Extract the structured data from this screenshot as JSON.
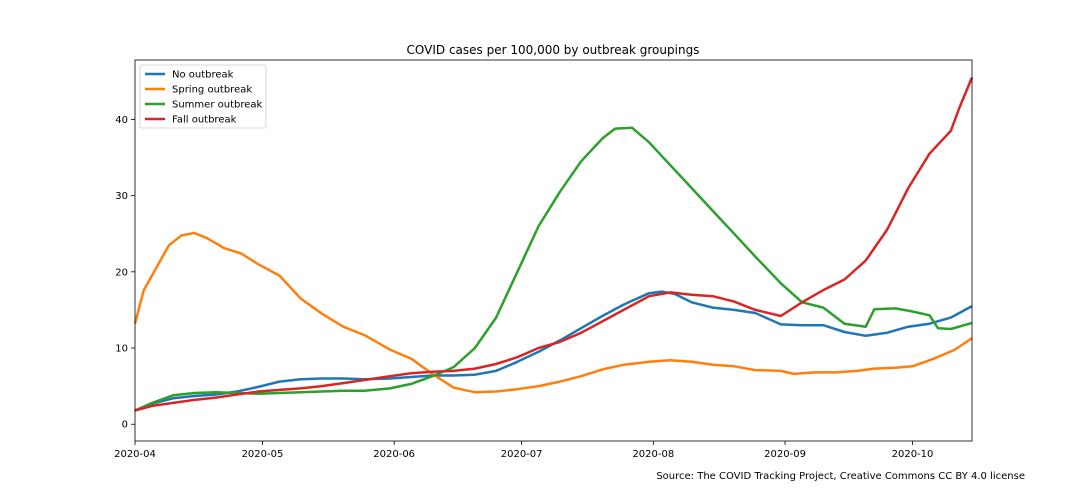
{
  "chart_data": {
    "type": "line",
    "title": "COVID cases per 100,000 by outbreak groupings",
    "xlabel": "",
    "ylabel": "",
    "x_ticks": [
      "2020-04",
      "2020-05",
      "2020-06",
      "2020-07",
      "2020-08",
      "2020-09",
      "2020-10"
    ],
    "y_ticks": [
      0,
      10,
      20,
      30,
      40
    ],
    "xlim": [
      "2020-04-01",
      "2020-10-15"
    ],
    "ylim": [
      -2.2,
      47.8
    ],
    "grid": false,
    "legend_position": "upper-left",
    "source_note": "Source: The COVID Tracking Project, Creative Commons CC BY 4.0 license",
    "series": [
      {
        "name": "No outbreak",
        "color": "#1f77b4",
        "points": [
          [
            "2020-04-01",
            1.8
          ],
          [
            "2020-04-05",
            2.7
          ],
          [
            "2020-04-10",
            3.4
          ],
          [
            "2020-04-15",
            3.7
          ],
          [
            "2020-04-20",
            3.9
          ],
          [
            "2020-04-25",
            4.3
          ],
          [
            "2020-04-30",
            4.9
          ],
          [
            "2020-05-05",
            5.6
          ],
          [
            "2020-05-10",
            5.9
          ],
          [
            "2020-05-15",
            6.0
          ],
          [
            "2020-05-20",
            6.0
          ],
          [
            "2020-05-25",
            5.9
          ],
          [
            "2020-05-31",
            6.0
          ],
          [
            "2020-06-05",
            6.2
          ],
          [
            "2020-06-10",
            6.4
          ],
          [
            "2020-06-15",
            6.4
          ],
          [
            "2020-06-20",
            6.5
          ],
          [
            "2020-06-25",
            7.0
          ],
          [
            "2020-06-30",
            8.2
          ],
          [
            "2020-07-05",
            9.5
          ],
          [
            "2020-07-10",
            11.0
          ],
          [
            "2020-07-15",
            12.6
          ],
          [
            "2020-07-20",
            14.2
          ],
          [
            "2020-07-25",
            15.7
          ],
          [
            "2020-07-31",
            17.2
          ],
          [
            "2020-08-03",
            17.4
          ],
          [
            "2020-08-06",
            17.1
          ],
          [
            "2020-08-10",
            16.0
          ],
          [
            "2020-08-15",
            15.3
          ],
          [
            "2020-08-20",
            15.0
          ],
          [
            "2020-08-25",
            14.6
          ],
          [
            "2020-08-31",
            13.1
          ],
          [
            "2020-09-05",
            13.0
          ],
          [
            "2020-09-10",
            13.0
          ],
          [
            "2020-09-15",
            12.1
          ],
          [
            "2020-09-20",
            11.6
          ],
          [
            "2020-09-25",
            12.0
          ],
          [
            "2020-09-30",
            12.8
          ],
          [
            "2020-10-05",
            13.2
          ],
          [
            "2020-10-10",
            14.0
          ],
          [
            "2020-10-15",
            15.5
          ]
        ]
      },
      {
        "name": "Spring outbreak",
        "color": "#ff7f0e",
        "points": [
          [
            "2020-04-01",
            13.2
          ],
          [
            "2020-04-03",
            17.5
          ],
          [
            "2020-04-06",
            20.5
          ],
          [
            "2020-04-09",
            23.5
          ],
          [
            "2020-04-12",
            24.8
          ],
          [
            "2020-04-15",
            25.1
          ],
          [
            "2020-04-18",
            24.4
          ],
          [
            "2020-04-22",
            23.1
          ],
          [
            "2020-04-26",
            22.4
          ],
          [
            "2020-04-30",
            21.0
          ],
          [
            "2020-05-05",
            19.5
          ],
          [
            "2020-05-10",
            16.5
          ],
          [
            "2020-05-15",
            14.5
          ],
          [
            "2020-05-20",
            12.8
          ],
          [
            "2020-05-25",
            11.7
          ],
          [
            "2020-05-31",
            9.8
          ],
          [
            "2020-06-05",
            8.6
          ],
          [
            "2020-06-10",
            6.6
          ],
          [
            "2020-06-15",
            4.8
          ],
          [
            "2020-06-20",
            4.2
          ],
          [
            "2020-06-25",
            4.3
          ],
          [
            "2020-06-30",
            4.6
          ],
          [
            "2020-07-05",
            5.0
          ],
          [
            "2020-07-10",
            5.6
          ],
          [
            "2020-07-15",
            6.3
          ],
          [
            "2020-07-20",
            7.2
          ],
          [
            "2020-07-25",
            7.8
          ],
          [
            "2020-07-31",
            8.2
          ],
          [
            "2020-08-05",
            8.4
          ],
          [
            "2020-08-10",
            8.2
          ],
          [
            "2020-08-15",
            7.8
          ],
          [
            "2020-08-20",
            7.6
          ],
          [
            "2020-08-25",
            7.1
          ],
          [
            "2020-08-31",
            7.0
          ],
          [
            "2020-09-03",
            6.6
          ],
          [
            "2020-09-08",
            6.8
          ],
          [
            "2020-09-13",
            6.8
          ],
          [
            "2020-09-18",
            7.0
          ],
          [
            "2020-09-22",
            7.3
          ],
          [
            "2020-09-27",
            7.4
          ],
          [
            "2020-10-01",
            7.6
          ],
          [
            "2020-10-06",
            8.6
          ],
          [
            "2020-10-11",
            9.8
          ],
          [
            "2020-10-15",
            11.3
          ]
        ]
      },
      {
        "name": "Summer outbreak",
        "color": "#2ca02c",
        "points": [
          [
            "2020-04-01",
            1.8
          ],
          [
            "2020-04-05",
            2.8
          ],
          [
            "2020-04-10",
            3.8
          ],
          [
            "2020-04-15",
            4.1
          ],
          [
            "2020-04-20",
            4.2
          ],
          [
            "2020-04-25",
            4.1
          ],
          [
            "2020-04-30",
            4.0
          ],
          [
            "2020-05-05",
            4.1
          ],
          [
            "2020-05-10",
            4.2
          ],
          [
            "2020-05-15",
            4.3
          ],
          [
            "2020-05-20",
            4.4
          ],
          [
            "2020-05-25",
            4.4
          ],
          [
            "2020-05-31",
            4.7
          ],
          [
            "2020-06-05",
            5.3
          ],
          [
            "2020-06-10",
            6.3
          ],
          [
            "2020-06-15",
            7.5
          ],
          [
            "2020-06-20",
            10.0
          ],
          [
            "2020-06-25",
            14.0
          ],
          [
            "2020-06-30",
            20.0
          ],
          [
            "2020-07-05",
            26.0
          ],
          [
            "2020-07-10",
            30.5
          ],
          [
            "2020-07-15",
            34.5
          ],
          [
            "2020-07-20",
            37.5
          ],
          [
            "2020-07-23",
            38.8
          ],
          [
            "2020-07-27",
            38.9
          ],
          [
            "2020-07-31",
            37.0
          ],
          [
            "2020-08-05",
            34.0
          ],
          [
            "2020-08-10",
            31.0
          ],
          [
            "2020-08-15",
            28.0
          ],
          [
            "2020-08-20",
            25.0
          ],
          [
            "2020-08-25",
            22.0
          ],
          [
            "2020-08-31",
            18.5
          ],
          [
            "2020-09-05",
            16.0
          ],
          [
            "2020-09-10",
            15.3
          ],
          [
            "2020-09-15",
            13.2
          ],
          [
            "2020-09-20",
            12.8
          ],
          [
            "2020-09-22",
            15.1
          ],
          [
            "2020-09-27",
            15.2
          ],
          [
            "2020-10-01",
            14.8
          ],
          [
            "2020-10-05",
            14.3
          ],
          [
            "2020-10-07",
            12.6
          ],
          [
            "2020-10-10",
            12.5
          ],
          [
            "2020-10-15",
            13.3
          ]
        ]
      },
      {
        "name": "Fall outbreak",
        "color": "#d62728",
        "points": [
          [
            "2020-04-01",
            1.8
          ],
          [
            "2020-04-05",
            2.4
          ],
          [
            "2020-04-10",
            2.8
          ],
          [
            "2020-04-15",
            3.2
          ],
          [
            "2020-04-20",
            3.5
          ],
          [
            "2020-04-25",
            3.9
          ],
          [
            "2020-04-30",
            4.3
          ],
          [
            "2020-05-05",
            4.5
          ],
          [
            "2020-05-10",
            4.7
          ],
          [
            "2020-05-15",
            5.0
          ],
          [
            "2020-05-20",
            5.4
          ],
          [
            "2020-05-25",
            5.8
          ],
          [
            "2020-05-31",
            6.3
          ],
          [
            "2020-06-05",
            6.7
          ],
          [
            "2020-06-10",
            6.9
          ],
          [
            "2020-06-15",
            7.0
          ],
          [
            "2020-06-20",
            7.3
          ],
          [
            "2020-06-25",
            7.9
          ],
          [
            "2020-06-30",
            8.8
          ],
          [
            "2020-07-05",
            10.0
          ],
          [
            "2020-07-10",
            10.8
          ],
          [
            "2020-07-15",
            12.0
          ],
          [
            "2020-07-20",
            13.5
          ],
          [
            "2020-07-25",
            15.0
          ],
          [
            "2020-07-31",
            16.8
          ],
          [
            "2020-08-05",
            17.3
          ],
          [
            "2020-08-10",
            17.0
          ],
          [
            "2020-08-15",
            16.8
          ],
          [
            "2020-08-20",
            16.1
          ],
          [
            "2020-08-25",
            15.0
          ],
          [
            "2020-08-31",
            14.2
          ],
          [
            "2020-09-05",
            16.0
          ],
          [
            "2020-09-10",
            17.6
          ],
          [
            "2020-09-15",
            19.0
          ],
          [
            "2020-09-20",
            21.5
          ],
          [
            "2020-09-25",
            25.5
          ],
          [
            "2020-09-30",
            31.0
          ],
          [
            "2020-10-05",
            35.5
          ],
          [
            "2020-10-10",
            38.5
          ],
          [
            "2020-10-12",
            41.5
          ],
          [
            "2020-10-15",
            45.5
          ]
        ]
      }
    ]
  }
}
